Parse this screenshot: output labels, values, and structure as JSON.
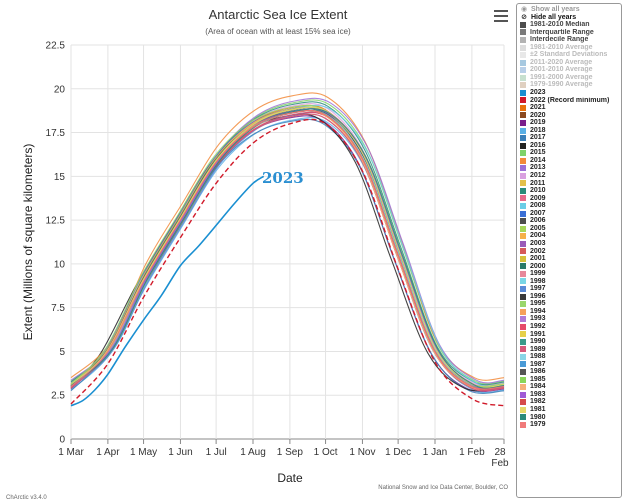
{
  "chart_data": {
    "type": "line",
    "title": "Antarctic Sea Ice Extent",
    "subtitle": "(Area of ocean with at least 15% sea ice)",
    "xlabel": "Date",
    "ylabel": "Extent (Millions of square kilometers)",
    "x_ticks": [
      "1 Mar",
      "1 Apr",
      "1 May",
      "1 Jun",
      "1 Jul",
      "1 Aug",
      "1 Sep",
      "1 Oct",
      "1 Nov",
      "1 Dec",
      "1 Jan",
      "1 Feb",
      "28"
    ],
    "x_tick_sub": "Feb",
    "x_tick_days": [
      0,
      31,
      61,
      92,
      122,
      153,
      184,
      214,
      245,
      275,
      306,
      337,
      364
    ],
    "xlim": [
      0,
      364
    ],
    "y_ticks": [
      "0",
      "2.5",
      "5",
      "7.5",
      "10",
      "12.5",
      "15",
      "17.5",
      "20",
      "22.5"
    ],
    "ylim": [
      0,
      22.5
    ],
    "grid": true,
    "credit": "National Snow and Ice Data Center, Boulder, CO",
    "version": "ChArctic v3.4.0",
    "annotation": {
      "text": "2023",
      "color": "#2b8fd1"
    },
    "typical_year": {
      "days": [
        0,
        31,
        61,
        92,
        122,
        153,
        184,
        214,
        245,
        275,
        306,
        337,
        364
      ],
      "values": [
        3.0,
        5.0,
        9.0,
        12.5,
        15.8,
        17.8,
        18.6,
        18.5,
        16.0,
        10.5,
        5.0,
        3.0,
        3.0
      ]
    },
    "series_2023": {
      "name": "2023",
      "color": "#1a8fd1",
      "days": [
        0,
        10,
        20,
        31,
        45,
        61,
        76,
        92,
        107,
        122,
        138,
        153,
        162
      ],
      "values": [
        1.9,
        2.2,
        2.8,
        3.7,
        5.2,
        6.8,
        8.2,
        9.9,
        11.0,
        12.2,
        13.5,
        14.6,
        15.0
      ]
    },
    "series_2022": {
      "name": "2022 (Record minimum)",
      "color": "#d11a2a",
      "days": [
        0,
        31,
        61,
        92,
        122,
        153,
        184,
        214,
        245,
        275,
        306,
        337,
        364
      ],
      "values": [
        2.0,
        4.3,
        8.1,
        11.5,
        14.6,
        16.9,
        18.0,
        18.0,
        15.3,
        9.7,
        4.4,
        2.3,
        1.9
      ]
    },
    "other_years": [
      {
        "name": "2021",
        "color": "#e8720c",
        "offset": 0.3,
        "shift": 0
      },
      {
        "name": "2020",
        "color": "#8c4a1f",
        "offset": -0.1,
        "shift": 2
      },
      {
        "name": "2019",
        "color": "#7a1f8c",
        "offset": -0.3,
        "shift": -3
      },
      {
        "name": "2018",
        "color": "#5ab0e6",
        "offset": -0.4,
        "shift": 1
      },
      {
        "name": "2017",
        "color": "#3a7fb8",
        "offset": -0.5,
        "shift": -2
      },
      {
        "name": "2016",
        "color": "#222222",
        "offset": -0.2,
        "shift": -6
      },
      {
        "name": "2015",
        "color": "#7fd36a",
        "offset": 0.6,
        "shift": 3
      },
      {
        "name": "2014",
        "color": "#f28a3a",
        "offset": 1.0,
        "shift": 2
      },
      {
        "name": "2013",
        "color": "#9b6fd6",
        "offset": 0.7,
        "shift": 4
      },
      {
        "name": "2012",
        "color": "#d9a0e0",
        "offset": 0.4,
        "shift": 1
      },
      {
        "name": "2011",
        "color": "#e3c04a",
        "offset": 0.0,
        "shift": -1
      },
      {
        "name": "2010",
        "color": "#2a8c7a",
        "offset": 0.5,
        "shift": 2
      },
      {
        "name": "2009",
        "color": "#e66a8a",
        "offset": 0.2,
        "shift": 0
      },
      {
        "name": "2008",
        "color": "#6acde6",
        "offset": 0.3,
        "shift": 5
      },
      {
        "name": "2007",
        "color": "#3a6fd6",
        "offset": 0.2,
        "shift": -2
      },
      {
        "name": "2006",
        "color": "#4d4d4d",
        "offset": 0.0,
        "shift": 1
      },
      {
        "name": "2005",
        "color": "#a6d65a",
        "offset": 0.1,
        "shift": 3
      },
      {
        "name": "2004",
        "color": "#f5b04a",
        "offset": 0.2,
        "shift": -1
      },
      {
        "name": "2003",
        "color": "#9a5ab8",
        "offset": 0.1,
        "shift": 2
      },
      {
        "name": "2002",
        "color": "#d65a5a",
        "offset": -0.2,
        "shift": 0
      },
      {
        "name": "2001",
        "color": "#d6c03a",
        "offset": 0.0,
        "shift": 1
      },
      {
        "name": "2000",
        "color": "#2a7a6a",
        "offset": 0.1,
        "shift": -1
      },
      {
        "name": "1999",
        "color": "#e6889a",
        "offset": 0.2,
        "shift": 2
      },
      {
        "name": "1998",
        "color": "#7ad6e6",
        "offset": 0.0,
        "shift": 0
      },
      {
        "name": "1997",
        "color": "#5a8ad6",
        "offset": -0.1,
        "shift": 3
      },
      {
        "name": "1996",
        "color": "#3a3a3a",
        "offset": 0.1,
        "shift": 1
      },
      {
        "name": "1995",
        "color": "#9ad66a",
        "offset": 0.3,
        "shift": -2
      },
      {
        "name": "1994",
        "color": "#f5a05a",
        "offset": 0.1,
        "shift": 2
      },
      {
        "name": "1993",
        "color": "#b07ad6",
        "offset": 0.0,
        "shift": 0
      },
      {
        "name": "1992",
        "color": "#e64a6a",
        "offset": -0.1,
        "shift": 1
      },
      {
        "name": "1991",
        "color": "#e6d04a",
        "offset": 0.0,
        "shift": -1
      },
      {
        "name": "1990",
        "color": "#3a9a8a",
        "offset": 0.1,
        "shift": 2
      },
      {
        "name": "1989",
        "color": "#d65a7a",
        "offset": -0.2,
        "shift": 0
      },
      {
        "name": "1988",
        "color": "#8ad6e6",
        "offset": 0.0,
        "shift": 1
      },
      {
        "name": "1987",
        "color": "#4a9ad6",
        "offset": 0.1,
        "shift": 2
      },
      {
        "name": "1986",
        "color": "#555555",
        "offset": 0.0,
        "shift": 0
      },
      {
        "name": "1985",
        "color": "#8ad65a",
        "offset": 0.2,
        "shift": 1
      },
      {
        "name": "1984",
        "color": "#f5b07a",
        "offset": 0.0,
        "shift": -1
      },
      {
        "name": "1983",
        "color": "#a05ad6",
        "offset": 0.1,
        "shift": 2
      },
      {
        "name": "1982",
        "color": "#d64a4a",
        "offset": 0.0,
        "shift": 0
      },
      {
        "name": "1981",
        "color": "#e6d86a",
        "offset": 0.2,
        "shift": 1
      },
      {
        "name": "1980",
        "color": "#2a8a7a",
        "offset": 0.1,
        "shift": 3
      },
      {
        "name": "1979",
        "color": "#f07a7a",
        "offset": 0.0,
        "shift": 0
      }
    ]
  },
  "legend": {
    "show_all": "Show all years",
    "hide_all": "Hide all years",
    "stats": [
      {
        "label": "1981-2010 Median",
        "color": "#4d4d4d",
        "faded": false
      },
      {
        "label": "Interquartile Range",
        "color": "#7a7a7a",
        "faded": false
      },
      {
        "label": "Interdecile Range",
        "color": "#b3b3b3",
        "faded": false
      },
      {
        "label": "1981-2010 Average",
        "color": "#dddddd",
        "faded": true
      },
      {
        "label": "±2 Standard Deviations",
        "color": "#e8e8e8",
        "faded": true
      },
      {
        "label": "2011-2020 Average",
        "color": "#a6c8e0",
        "faded": true
      },
      {
        "label": "2001-2010 Average",
        "color": "#b8cfe8",
        "faded": true
      },
      {
        "label": "1991-2000 Average",
        "color": "#c7e0cf",
        "faded": true
      },
      {
        "label": "1979-1990 Average",
        "color": "#e0d0c0",
        "faded": true
      }
    ],
    "years": [
      {
        "label": "2023",
        "color": "#1a8fd1"
      },
      {
        "label": "2022 (Record minimum)",
        "color": "#d11a2a"
      },
      {
        "label": "2021",
        "color": "#e8720c"
      },
      {
        "label": "2020",
        "color": "#8c4a1f"
      },
      {
        "label": "2019",
        "color": "#7a1f8c"
      },
      {
        "label": "2018",
        "color": "#5ab0e6"
      },
      {
        "label": "2017",
        "color": "#3a7fb8"
      },
      {
        "label": "2016",
        "color": "#222222"
      },
      {
        "label": "2015",
        "color": "#7fd36a"
      },
      {
        "label": "2014",
        "color": "#f28a3a"
      },
      {
        "label": "2013",
        "color": "#9b6fd6"
      },
      {
        "label": "2012",
        "color": "#d9a0e0"
      },
      {
        "label": "2011",
        "color": "#e3c04a"
      },
      {
        "label": "2010",
        "color": "#2a8c7a"
      },
      {
        "label": "2009",
        "color": "#e66a8a"
      },
      {
        "label": "2008",
        "color": "#6acde6"
      },
      {
        "label": "2007",
        "color": "#3a6fd6"
      },
      {
        "label": "2006",
        "color": "#4d4d4d"
      },
      {
        "label": "2005",
        "color": "#a6d65a"
      },
      {
        "label": "2004",
        "color": "#f5b04a"
      },
      {
        "label": "2003",
        "color": "#9a5ab8"
      },
      {
        "label": "2002",
        "color": "#d65a5a"
      },
      {
        "label": "2001",
        "color": "#d6c03a"
      },
      {
        "label": "2000",
        "color": "#2a7a6a"
      },
      {
        "label": "1999",
        "color": "#e6889a"
      },
      {
        "label": "1998",
        "color": "#7ad6e6"
      },
      {
        "label": "1997",
        "color": "#5a8ad6"
      },
      {
        "label": "1996",
        "color": "#3a3a3a"
      },
      {
        "label": "1995",
        "color": "#9ad66a"
      },
      {
        "label": "1994",
        "color": "#f5a05a"
      },
      {
        "label": "1993",
        "color": "#b07ad6"
      },
      {
        "label": "1992",
        "color": "#e64a6a"
      },
      {
        "label": "1991",
        "color": "#e6d04a"
      },
      {
        "label": "1990",
        "color": "#3a9a8a"
      },
      {
        "label": "1989",
        "color": "#d65a7a"
      },
      {
        "label": "1988",
        "color": "#8ad6e6"
      },
      {
        "label": "1987",
        "color": "#4a9ad6"
      },
      {
        "label": "1986",
        "color": "#555555"
      },
      {
        "label": "1985",
        "color": "#8ad65a"
      },
      {
        "label": "1984",
        "color": "#f5b07a"
      },
      {
        "label": "1983",
        "color": "#a05ad6"
      },
      {
        "label": "1982",
        "color": "#d64a4a"
      },
      {
        "label": "1981",
        "color": "#e6d86a"
      },
      {
        "label": "1980",
        "color": "#2a8a7a"
      },
      {
        "label": "1979",
        "color": "#f07a7a"
      }
    ]
  },
  "menu": {
    "icon": "hamburger-menu-icon"
  }
}
